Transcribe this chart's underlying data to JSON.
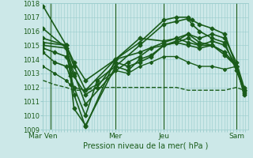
{
  "xlabel": "Pression niveau de la mer( hPa )",
  "background_color": "#cce8e8",
  "plot_bg_color": "#cce8e8",
  "grid_color": "#99cccc",
  "line_color": "#1a5c1a",
  "ylim": [
    1009,
    1018
  ],
  "yticks": [
    1009,
    1010,
    1011,
    1012,
    1013,
    1014,
    1015,
    1016,
    1017,
    1018
  ],
  "xtick_labels": [
    "Mar Ven",
    "Mer",
    "Jeu",
    "Sam"
  ],
  "xtick_positions": [
    0.0,
    0.375,
    0.625,
    1.0
  ],
  "vline_positions": [
    0.04,
    0.375,
    0.625,
    1.0
  ],
  "series": [
    {
      "x": [
        0.0,
        0.12,
        0.14,
        0.16,
        0.22,
        0.375,
        0.5,
        0.625,
        0.69,
        0.75,
        0.77,
        0.81,
        0.875,
        0.94,
        1.0,
        1.04
      ],
      "y": [
        1017.8,
        1015.0,
        1013.5,
        1011.5,
        1009.2,
        1014.0,
        1015.2,
        1016.8,
        1017.0,
        1017.0,
        1016.8,
        1016.5,
        1016.2,
        1015.8,
        1013.5,
        1011.6
      ],
      "marker": "D",
      "ms": 2.5,
      "lw": 1.2,
      "linestyle": "-"
    },
    {
      "x": [
        0.0,
        0.12,
        0.14,
        0.16,
        0.22,
        0.375,
        0.5,
        0.625,
        0.69,
        0.75,
        0.77,
        0.81,
        0.875,
        0.94,
        1.0,
        1.04
      ],
      "y": [
        1016.2,
        1014.8,
        1013.0,
        1010.5,
        1009.3,
        1013.5,
        1015.0,
        1016.5,
        1016.7,
        1016.9,
        1016.5,
        1016.0,
        1015.5,
        1015.2,
        1013.2,
        1011.8
      ],
      "marker": "D",
      "ms": 2.5,
      "lw": 1.2,
      "linestyle": "-"
    },
    {
      "x": [
        0.0,
        0.12,
        0.16,
        0.22,
        0.375,
        0.5,
        0.625,
        0.69,
        0.75,
        0.81,
        0.875,
        0.94,
        1.0,
        1.04
      ],
      "y": [
        1015.5,
        1015.0,
        1013.8,
        1012.5,
        1014.0,
        1015.5,
        1015.3,
        1015.5,
        1015.8,
        1015.5,
        1015.8,
        1015.5,
        1013.8,
        1012.0
      ],
      "marker": "D",
      "ms": 2.5,
      "lw": 1.2,
      "linestyle": "-"
    },
    {
      "x": [
        0.0,
        0.12,
        0.16,
        0.22,
        0.375,
        0.5,
        0.625,
        0.69,
        0.75,
        0.81,
        0.875,
        0.94,
        1.0,
        1.04
      ],
      "y": [
        1015.2,
        1015.0,
        1013.5,
        1011.8,
        1014.0,
        1014.5,
        1015.2,
        1015.5,
        1015.2,
        1015.0,
        1015.3,
        1015.0,
        1013.5,
        1011.8
      ],
      "marker": "D",
      "ms": 2.5,
      "lw": 1.2,
      "linestyle": "-"
    },
    {
      "x": [
        0.0,
        0.12,
        0.16,
        0.22,
        0.375,
        0.44,
        0.5,
        0.56,
        0.625,
        0.69,
        0.75,
        0.81,
        0.875,
        0.94,
        1.0,
        1.04
      ],
      "y": [
        1015.0,
        1014.8,
        1013.0,
        1010.8,
        1013.2,
        1013.8,
        1014.2,
        1014.8,
        1015.0,
        1015.2,
        1015.0,
        1014.8,
        1015.0,
        1014.5,
        1013.5,
        1011.7
      ],
      "marker": "D",
      "ms": 2.5,
      "lw": 1.2,
      "linestyle": "-"
    },
    {
      "x": [
        0.0,
        0.06,
        0.12,
        0.14,
        0.16,
        0.22,
        0.28,
        0.375,
        0.44,
        0.5,
        0.56,
        0.625,
        0.69,
        0.75,
        0.81,
        0.875,
        0.94,
        1.0,
        1.04
      ],
      "y": [
        1014.8,
        1014.5,
        1014.2,
        1013.5,
        1012.8,
        1011.5,
        1012.0,
        1013.8,
        1013.5,
        1013.8,
        1014.2,
        1015.0,
        1015.3,
        1015.8,
        1015.2,
        1015.0,
        1014.5,
        1013.5,
        1011.8
      ],
      "marker": "D",
      "ms": 2.5,
      "lw": 1.2,
      "linestyle": "-"
    },
    {
      "x": [
        0.0,
        0.06,
        0.12,
        0.14,
        0.16,
        0.22,
        0.28,
        0.375,
        0.44,
        0.5,
        0.56,
        0.625,
        0.69,
        0.75,
        0.81,
        0.875,
        0.94,
        1.0,
        1.04
      ],
      "y": [
        1014.5,
        1013.8,
        1013.5,
        1012.8,
        1012.0,
        1010.0,
        1012.5,
        1013.5,
        1013.2,
        1014.0,
        1014.3,
        1015.0,
        1015.2,
        1015.5,
        1015.0,
        1015.0,
        1014.3,
        1013.5,
        1011.5
      ],
      "marker": "D",
      "ms": 2.5,
      "lw": 1.2,
      "linestyle": "-"
    },
    {
      "x": [
        0.0,
        0.06,
        0.12,
        0.14,
        0.16,
        0.22,
        0.28,
        0.375,
        0.44,
        0.5,
        0.56,
        0.625,
        0.69,
        0.75,
        0.81,
        0.875,
        0.94,
        1.0,
        1.04
      ],
      "y": [
        1013.5,
        1013.0,
        1012.5,
        1012.2,
        1012.0,
        1011.8,
        1012.2,
        1013.2,
        1013.0,
        1013.5,
        1013.8,
        1014.2,
        1014.2,
        1013.8,
        1013.5,
        1013.5,
        1013.3,
        1013.5,
        1011.8
      ],
      "marker": "D",
      "ms": 2.0,
      "lw": 1.0,
      "linestyle": "-"
    },
    {
      "x": [
        0.0,
        0.06,
        0.12,
        0.16,
        0.22,
        0.28,
        0.375,
        0.44,
        0.5,
        0.56,
        0.625,
        0.69,
        0.75,
        0.81,
        0.875,
        0.94,
        1.0,
        1.04
      ],
      "y": [
        1012.5,
        1012.2,
        1012.0,
        1011.8,
        1011.8,
        1012.0,
        1012.0,
        1012.0,
        1012.0,
        1012.0,
        1012.0,
        1012.0,
        1011.8,
        1011.8,
        1011.8,
        1011.8,
        1012.0,
        1011.8
      ],
      "marker": "None",
      "ms": 0,
      "lw": 1.0,
      "linestyle": "--"
    }
  ]
}
